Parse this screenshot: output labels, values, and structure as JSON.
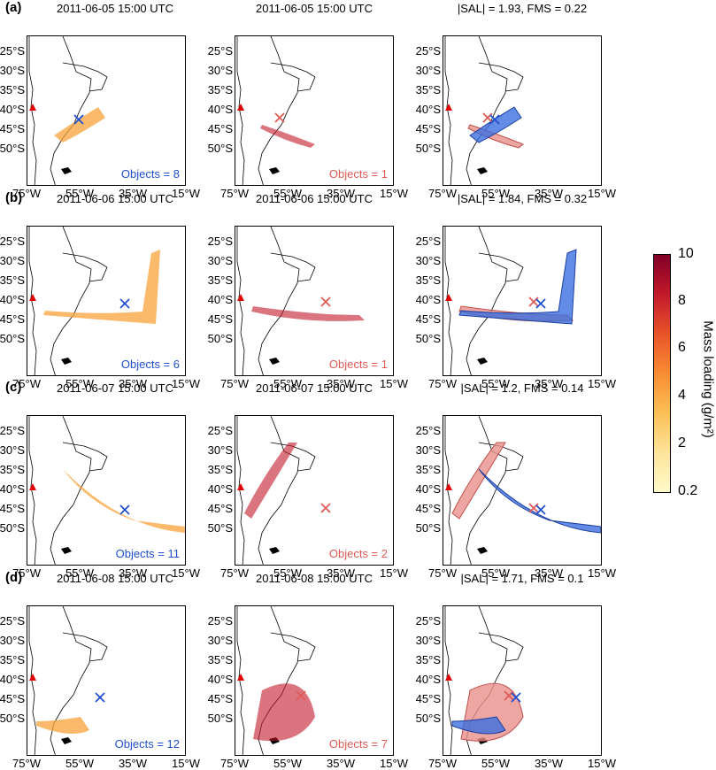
{
  "rows": [
    {
      "letter": "(a)",
      "titles": [
        "2011-06-05 15:00 UTC",
        "2011-06-05 15:00 UTC",
        "|SAL| = 1.93, FMS = 0.22"
      ],
      "obs_objects": "Objects = 8",
      "mod_objects": "Objects = 1"
    },
    {
      "letter": "(b)",
      "titles": [
        "2011-06-06 15:00 UTC",
        "2011-06-06 15:00 UTC",
        "|SAL| = 1.84, FMS = 0.32"
      ],
      "obs_objects": "Objects = 6",
      "mod_objects": "Objects = 1"
    },
    {
      "letter": "(c)",
      "titles": [
        "2011-06-07 15:00 UTC",
        "2011-06-07 15:00 UTC",
        "|SAL| = 1.2, FMS = 0.14"
      ],
      "obs_objects": "Objects = 11",
      "mod_objects": "Objects = 2"
    },
    {
      "letter": "(d)",
      "titles": [
        "2011-06-08 15:00 UTC",
        "2011-06-08 15:00 UTC",
        "|SAL| = 1.71, FMS = 0.1"
      ],
      "obs_objects": "Objects = 12",
      "mod_objects": "Objects = 7"
    }
  ],
  "axes": {
    "yticks": [
      "25°S",
      "30°S",
      "35°S",
      "40°S",
      "45°S",
      "50°S"
    ],
    "xticks": [
      "75°W",
      "55°W",
      "35°W",
      "15°W"
    ]
  },
  "colorbar": {
    "label": "Mass loading (g/m²)",
    "ticks": [
      "10",
      "8",
      "6",
      "4",
      "2",
      "0.2"
    ]
  },
  "colors": {
    "obs_marker": "#1f4fd1",
    "mod_marker": "#e05a55",
    "obs_fill": "#3b6fe0",
    "mod_fill": "#e8908a",
    "volcano": "#e00000"
  }
}
